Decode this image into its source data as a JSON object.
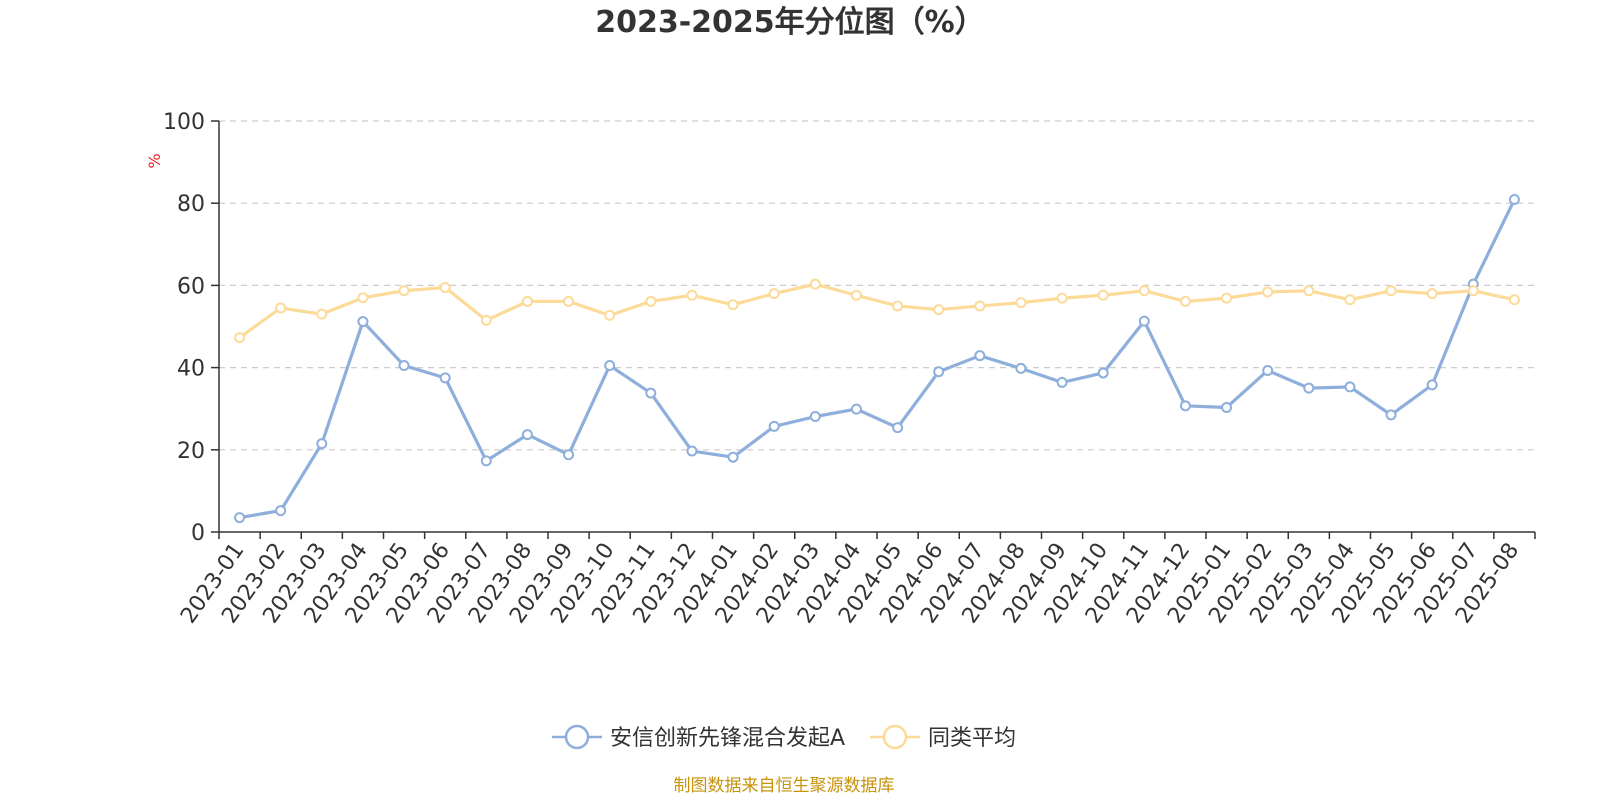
{
  "chart_data": {
    "type": "line",
    "title": "2023-2025年分位图（%）",
    "y_unit": "%",
    "ylim": [
      0,
      100
    ],
    "yticks": [
      0,
      20,
      40,
      60,
      80,
      100
    ],
    "grid": true,
    "legend_position": "bottom",
    "categories": [
      "2023-01",
      "2023-02",
      "2023-03",
      "2023-04",
      "2023-05",
      "2023-06",
      "2023-07",
      "2023-08",
      "2023-09",
      "2023-10",
      "2023-11",
      "2023-12",
      "2024-01",
      "2024-02",
      "2024-03",
      "2024-04",
      "2024-05",
      "2024-06",
      "2024-07",
      "2024-08",
      "2024-09",
      "2024-10",
      "2024-11",
      "2024-12",
      "2025-01",
      "2025-02",
      "2025-03",
      "2025-04",
      "2025-05",
      "2025-06",
      "2025-07",
      "2025-08"
    ],
    "series": [
      {
        "name": "安信创新先锋混合发起A",
        "color": "#8eaedb",
        "values": [
          3.5,
          5.2,
          21.5,
          51.2,
          40.5,
          37.5,
          17.3,
          23.7,
          18.8,
          40.5,
          33.8,
          19.7,
          18.2,
          25.7,
          28.1,
          29.9,
          25.4,
          39.0,
          42.9,
          39.8,
          36.4,
          38.7,
          51.3,
          30.7,
          30.3,
          39.3,
          35.0,
          35.3,
          28.5,
          35.8,
          60.3,
          80.9
        ]
      },
      {
        "name": "同类平均",
        "color": "#fcdb99",
        "values": [
          47.3,
          54.5,
          53.0,
          57.0,
          58.7,
          59.5,
          51.5,
          56.1,
          56.1,
          52.7,
          56.1,
          57.6,
          55.3,
          58.0,
          60.3,
          57.6,
          55.0,
          54.1,
          55.0,
          55.8,
          56.9,
          57.6,
          58.7,
          56.1,
          56.9,
          58.4,
          58.7,
          56.5,
          58.7,
          58.0,
          58.7,
          56.5
        ]
      }
    ]
  },
  "source_text": "制图数据来自恒生聚源数据库",
  "colors": {
    "unit": "#e8212a",
    "source": "#c8930b",
    "axis": "#333333",
    "grid": "#cccccc"
  }
}
